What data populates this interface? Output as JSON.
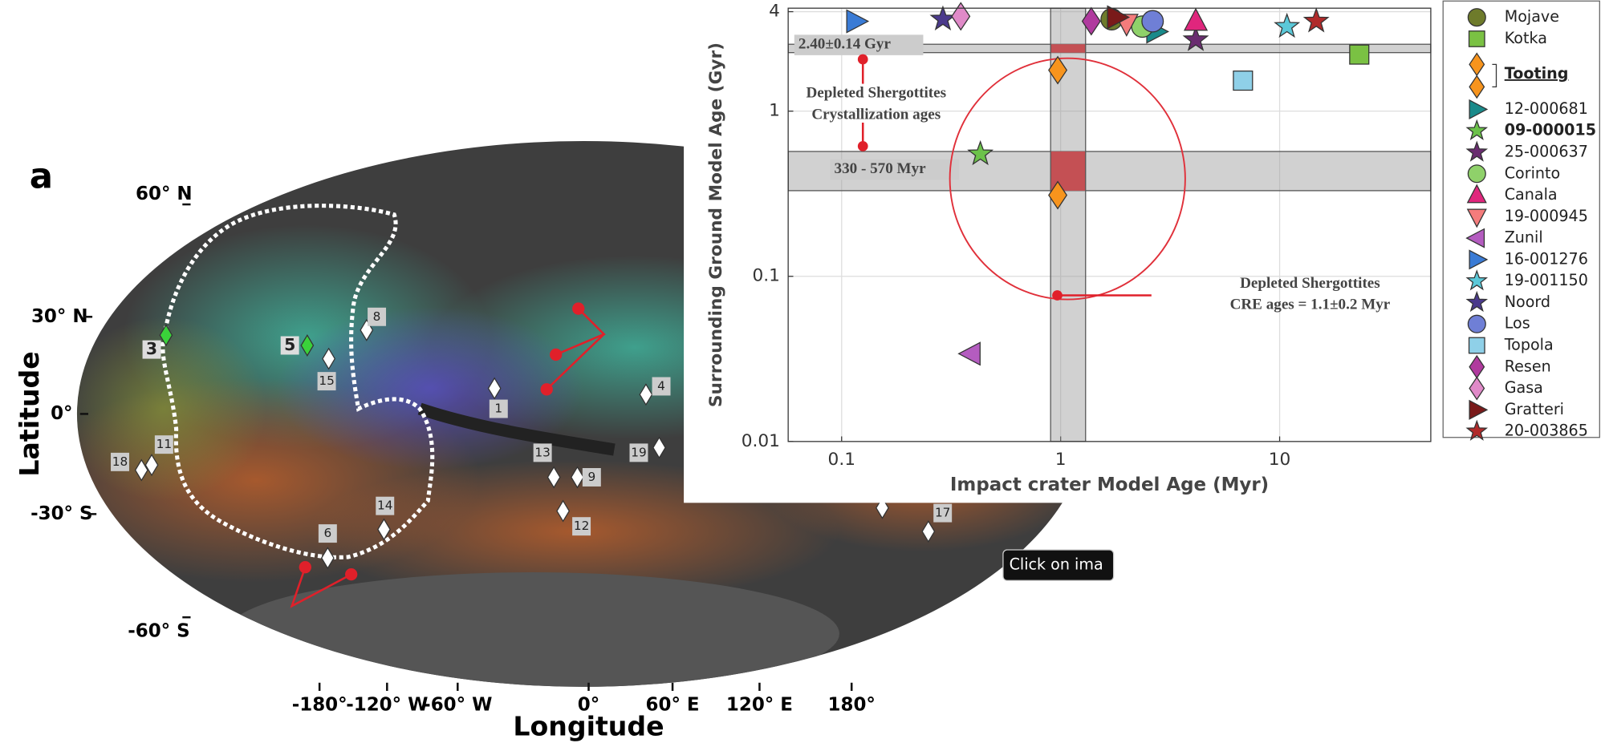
{
  "map": {
    "panel_label": "a",
    "y_axis_label": "Latitude",
    "x_axis_label": "Longitude",
    "lat_ticks": [
      "60° N",
      "30° N",
      "0°",
      "-30° S",
      "-60° S"
    ],
    "lon_ticks": [
      "-180°",
      "-120° W",
      "-60° W",
      "0°",
      "60° E",
      "120° E",
      "180°"
    ],
    "sites": [
      "1",
      "3",
      "4",
      "5",
      "6",
      "8",
      "9",
      "11",
      "12",
      "13",
      "14",
      "15",
      "17",
      "18",
      "19"
    ]
  },
  "chart_data": {
    "type": "scatter",
    "x_label": "Impact crater Model Age (Myr)",
    "y_label": "Surrounding Ground Model Age (Gyr)",
    "log_x": true,
    "log_y": true,
    "grid": true,
    "xlim": [
      0.057,
      49
    ],
    "ylim": [
      0.01,
      4.2
    ],
    "xticks": [
      0.1,
      1,
      10
    ],
    "yticks": [
      0.01,
      0.1,
      1,
      4
    ],
    "series": [
      {
        "name": "Mojave",
        "color": "#6e7b2b",
        "marker": "circle",
        "x": [
          1.71
        ],
        "values": [
          3.6
        ]
      },
      {
        "name": "Kotka",
        "color": "#7ac143",
        "marker": "square",
        "x": [
          23.1
        ],
        "values": [
          2.2
        ]
      },
      {
        "name": "Tooting",
        "color": "#f7941d",
        "marker": "diamond",
        "underline": true,
        "x": [
          0.97,
          0.97
        ],
        "values": [
          1.77,
          0.31
        ]
      },
      {
        "name": "12-000681",
        "color": "#1a8a8a",
        "marker": "triangle-right",
        "x": [
          2.72
        ],
        "values": [
          3.03
        ]
      },
      {
        "name": "09-000015",
        "color": "#6cc24a",
        "marker": "star",
        "bold": true,
        "x": [
          0.43
        ],
        "values": [
          0.55
        ]
      },
      {
        "name": "25-000637",
        "color": "#6a2c70",
        "marker": "star",
        "x": [
          4.14
        ],
        "values": [
          2.7
        ]
      },
      {
        "name": "Corinto",
        "color": "#8fd16a",
        "marker": "circle",
        "x": [
          2.36
        ],
        "values": [
          3.25
        ]
      },
      {
        "name": "Canala",
        "color": "#e0267d",
        "marker": "triangle-up",
        "x": [
          4.14
        ],
        "values": [
          3.5
        ]
      },
      {
        "name": "19-000945",
        "color": "#f47c7c",
        "marker": "triangle-down",
        "x": [
          2.0
        ],
        "values": [
          3.4
        ]
      },
      {
        "name": "Zunil",
        "color": "#b45cc0",
        "marker": "triangle-left",
        "x": [
          0.39
        ],
        "values": [
          0.034
        ]
      },
      {
        "name": "16-001276",
        "color": "#3a7bd5",
        "marker": "triangle-right",
        "x": [
          0.116
        ],
        "values": [
          3.5
        ]
      },
      {
        "name": "19-001150",
        "color": "#5bc8d8",
        "marker": "star",
        "x": [
          10.8
        ],
        "values": [
          3.25
        ]
      },
      {
        "name": "Noord",
        "color": "#4b3a8c",
        "marker": "star",
        "x": [
          0.29
        ],
        "values": [
          3.6
        ]
      },
      {
        "name": "Los",
        "color": "#6f7fd6",
        "marker": "circle",
        "x": [
          2.63
        ],
        "values": [
          3.5
        ]
      },
      {
        "name": "Topola",
        "color": "#8fd0e8",
        "marker": "square",
        "x": [
          6.8
        ],
        "values": [
          1.53
        ]
      },
      {
        "name": "Resen",
        "color": "#b03a9e",
        "marker": "diamond",
        "x": [
          1.38
        ],
        "values": [
          3.5
        ]
      },
      {
        "name": "Gasa",
        "color": "#e08ac8",
        "marker": "diamond",
        "x": [
          0.35
        ],
        "values": [
          3.75
        ]
      },
      {
        "name": "Gratteri",
        "color": "#7a1a1a",
        "marker": "triangle-right",
        "x": [
          1.8
        ],
        "values": [
          3.7
        ]
      },
      {
        "name": "20-003865",
        "color": "#b02a2a",
        "marker": "star",
        "x": [
          14.7
        ],
        "values": [
          3.5
        ]
      }
    ],
    "bands": [
      {
        "axis": "y",
        "range": [
          2.26,
          2.54
        ],
        "label": "2.40±0.14 Gyr"
      },
      {
        "axis": "y",
        "range": [
          0.33,
          0.57
        ],
        "label": "330 - 570 Myr"
      },
      {
        "axis": "x",
        "range": [
          0.9,
          1.3
        ]
      }
    ],
    "annotations": [
      [
        "Depleted Shergottites",
        "Crystallization ages"
      ],
      [
        "Depleted Shergottites",
        "CRE ages = 1.1±0.2 Myr"
      ]
    ]
  },
  "tooltip": "Click on ima"
}
